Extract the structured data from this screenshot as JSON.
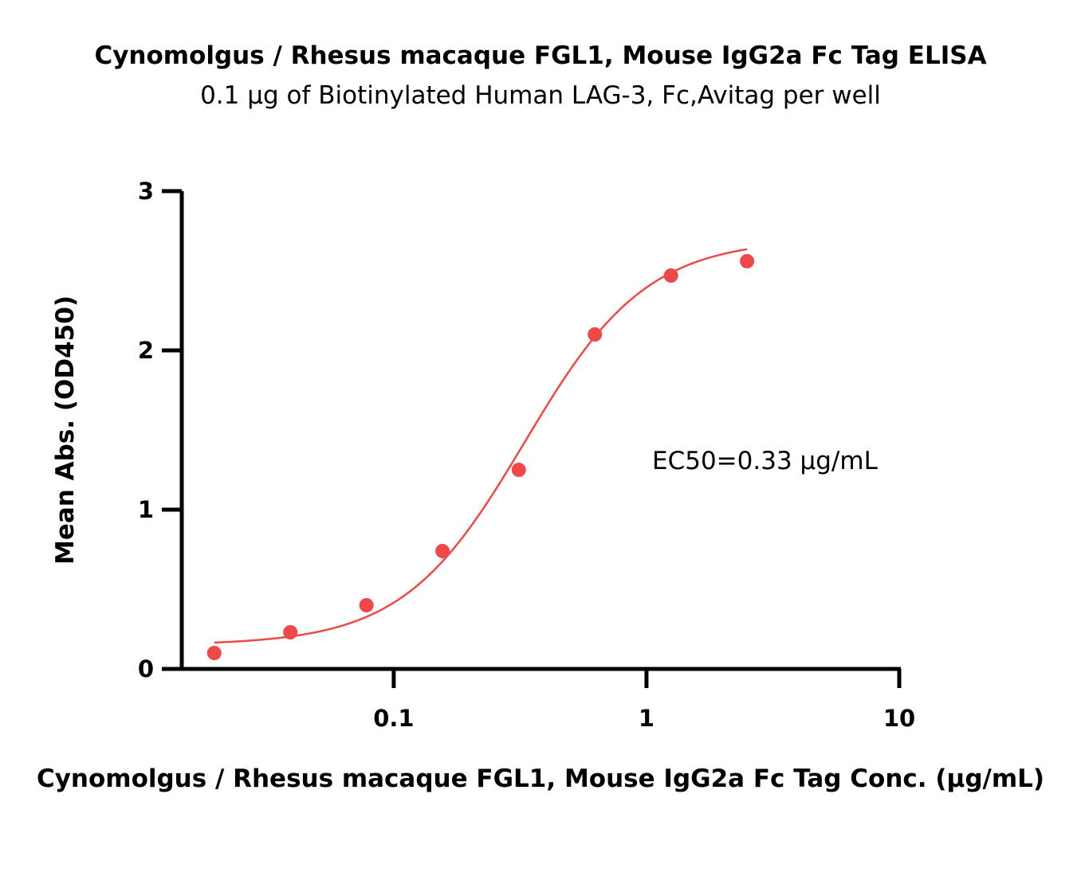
{
  "chart_data": {
    "type": "scatter",
    "title": "Cynomolgus / Rhesus macaque FGL1, Mouse IgG2a Fc Tag ELISA",
    "subtitle": "0.1 μg of Biotinylated Human LAG-3, Fc,Avitag per well",
    "xlabel": "Cynomolgus / Rhesus macaque FGL1, Mouse IgG2a Fc Tag Conc. (μg/mL)",
    "ylabel": "Mean Abs. (OD450)",
    "x_scale": "log",
    "xlim": [
      0.0145,
      10
    ],
    "ylim": [
      0,
      3
    ],
    "x_ticks": [
      {
        "value": 0.1,
        "label": "0.1"
      },
      {
        "value": 1,
        "label": "1"
      },
      {
        "value": 10,
        "label": "10"
      }
    ],
    "y_ticks": [
      {
        "value": 0,
        "label": "0"
      },
      {
        "value": 1,
        "label": "1"
      },
      {
        "value": 2,
        "label": "2"
      },
      {
        "value": 3,
        "label": "3"
      }
    ],
    "series": [
      {
        "color": "#f04848",
        "x": [
          0.0195,
          0.039,
          0.078,
          0.156,
          0.3125,
          0.625,
          1.25,
          2.5
        ],
        "y": [
          0.1,
          0.23,
          0.4,
          0.74,
          1.25,
          2.1,
          2.47,
          2.56
        ]
      }
    ],
    "fit_curve": {
      "color": "#f04848",
      "model": "4PL",
      "bottom": 0.15,
      "top": 2.7,
      "ec50": 0.33,
      "hill": 1.8,
      "x_range": [
        0.0195,
        2.5
      ]
    },
    "annotation": "EC50=0.33 μg/mL",
    "grid": false,
    "legend": "none"
  }
}
